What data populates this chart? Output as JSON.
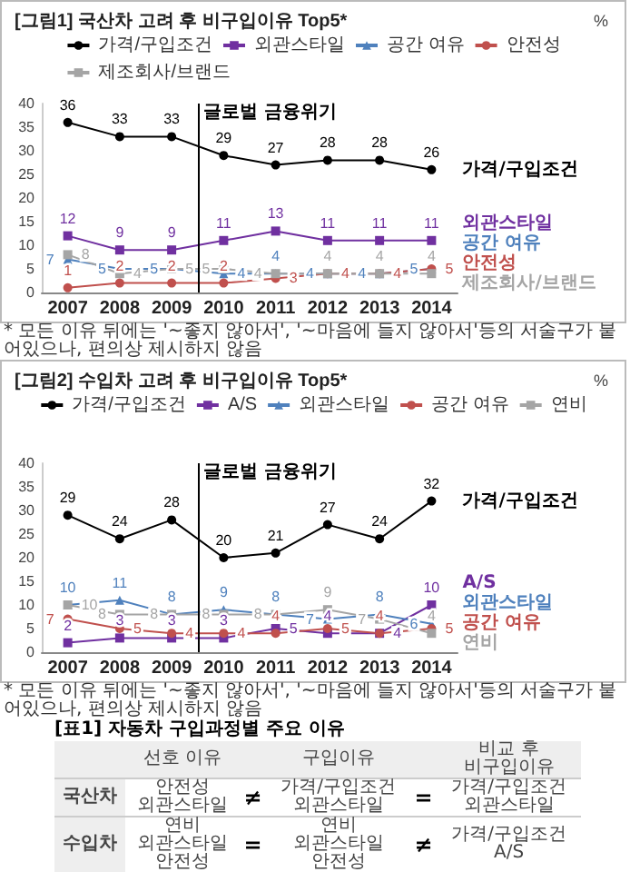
{
  "chart_data": [
    {
      "type": "line",
      "title": "[그림1] 국산차 고려 후 비구입이유 Top5*",
      "ylabel": "%",
      "x": [
        2007,
        2008,
        2009,
        2010,
        2011,
        2012,
        2013,
        2014
      ],
      "xlim": [
        2006.5,
        2014.5
      ],
      "xticks": [
        2007,
        2008,
        2009,
        2010,
        2011,
        2012,
        2013,
        2014
      ],
      "ylim": [
        0,
        40
      ],
      "yticks": [
        0,
        5,
        10,
        15,
        20,
        25,
        30,
        35,
        40
      ],
      "legend": "top",
      "data_labels": true,
      "grid": false,
      "series": [
        {
          "name": "가격/구입조건",
          "color": "#000000",
          "marker": "circle",
          "values": [
            36,
            33,
            33,
            29,
            27,
            28,
            28,
            26
          ]
        },
        {
          "name": "외관스타일",
          "color": "#7030a0",
          "marker": "square",
          "values": [
            12,
            9,
            9,
            11,
            13,
            11,
            11,
            11
          ]
        },
        {
          "name": "공간 여유",
          "color": "#4f81bd",
          "marker": "triangle",
          "values": [
            7,
            5,
            5,
            4,
            4,
            4,
            4,
            5
          ]
        },
        {
          "name": "안전성",
          "color": "#c0504d",
          "marker": "circle",
          "values": [
            1,
            2,
            2,
            2,
            3,
            4,
            4,
            5
          ]
        },
        {
          "name": "제조회사/브랜드",
          "color": "#a5a5a5",
          "marker": "square",
          "values": [
            8,
            4,
            5,
            5,
            4,
            4,
            4,
            4
          ]
        }
      ],
      "ref_lines": [
        {
          "axis": "x",
          "value": 2009.5,
          "label": "글로벌 금융위기",
          "color": "#000000"
        }
      ],
      "annotations": [
        "* 모든 이유 뒤에는 '~좋지 않아서', '~마음에 들지 않아서'등의 서술구가 붙어있으나, 편의상 제시하지 않음"
      ]
    },
    {
      "type": "line",
      "title": "[그림2] 수입차 고려 후 비구입이유 Top5*",
      "ylabel": "%",
      "x": [
        2007,
        2008,
        2009,
        2010,
        2011,
        2012,
        2013,
        2014
      ],
      "xlim": [
        2006.5,
        2014.5
      ],
      "xticks": [
        2007,
        2008,
        2009,
        2010,
        2011,
        2012,
        2013,
        2014
      ],
      "ylim": [
        0,
        40
      ],
      "yticks": [
        0,
        5,
        10,
        15,
        20,
        25,
        30,
        35,
        40
      ],
      "legend": "top",
      "data_labels": true,
      "grid": false,
      "series": [
        {
          "name": "가격/구입조건",
          "color": "#000000",
          "marker": "circle",
          "values": [
            29,
            24,
            28,
            20,
            21,
            27,
            24,
            32
          ]
        },
        {
          "name": "A/S",
          "color": "#7030a0",
          "marker": "square",
          "values": [
            2,
            3,
            3,
            3,
            5,
            4,
            4,
            10
          ]
        },
        {
          "name": "외관스타일",
          "color": "#4f81bd",
          "marker": "triangle",
          "values": [
            10,
            11,
            8,
            9,
            8,
            7,
            8,
            6
          ]
        },
        {
          "name": "공간 여유",
          "color": "#c0504d",
          "marker": "circle",
          "values": [
            7,
            5,
            4,
            4,
            4,
            5,
            4,
            5
          ]
        },
        {
          "name": "연비",
          "color": "#a5a5a5",
          "marker": "square",
          "values": [
            10,
            8,
            8,
            8,
            8,
            9,
            7,
            4
          ]
        }
      ],
      "ref_lines": [
        {
          "axis": "x",
          "value": 2009.5,
          "label": "글로벌 금융위기",
          "color": "#000000"
        }
      ],
      "annotations": [
        "* 모든 이유 뒤에는 '~좋지 않아서', '~마음에 들지 않아서'등의 서술구가 붙어있으나, 편의상 제시하지 않음"
      ]
    },
    {
      "type": "other",
      "title": "[표1] 자동차 구입과정별 주요 이유",
      "categories": [
        null,
        "선호 이유",
        "구입이유",
        "비교 후\n비구입이유"
      ],
      "y_categories": [
        "국산차",
        "수입차"
      ],
      "cell_labels": [
        [
          "안전성\n외관스타일",
          "≠",
          "가격/구입조건\n외관스타일",
          "=",
          "가격/구입조건\n외관스타일"
        ],
        [
          "연비\n외관스타일\n안전성",
          "=",
          "연비\n외관스타일\n안전성",
          "≠",
          "가격/구입조건\nA/S"
        ]
      ]
    }
  ]
}
